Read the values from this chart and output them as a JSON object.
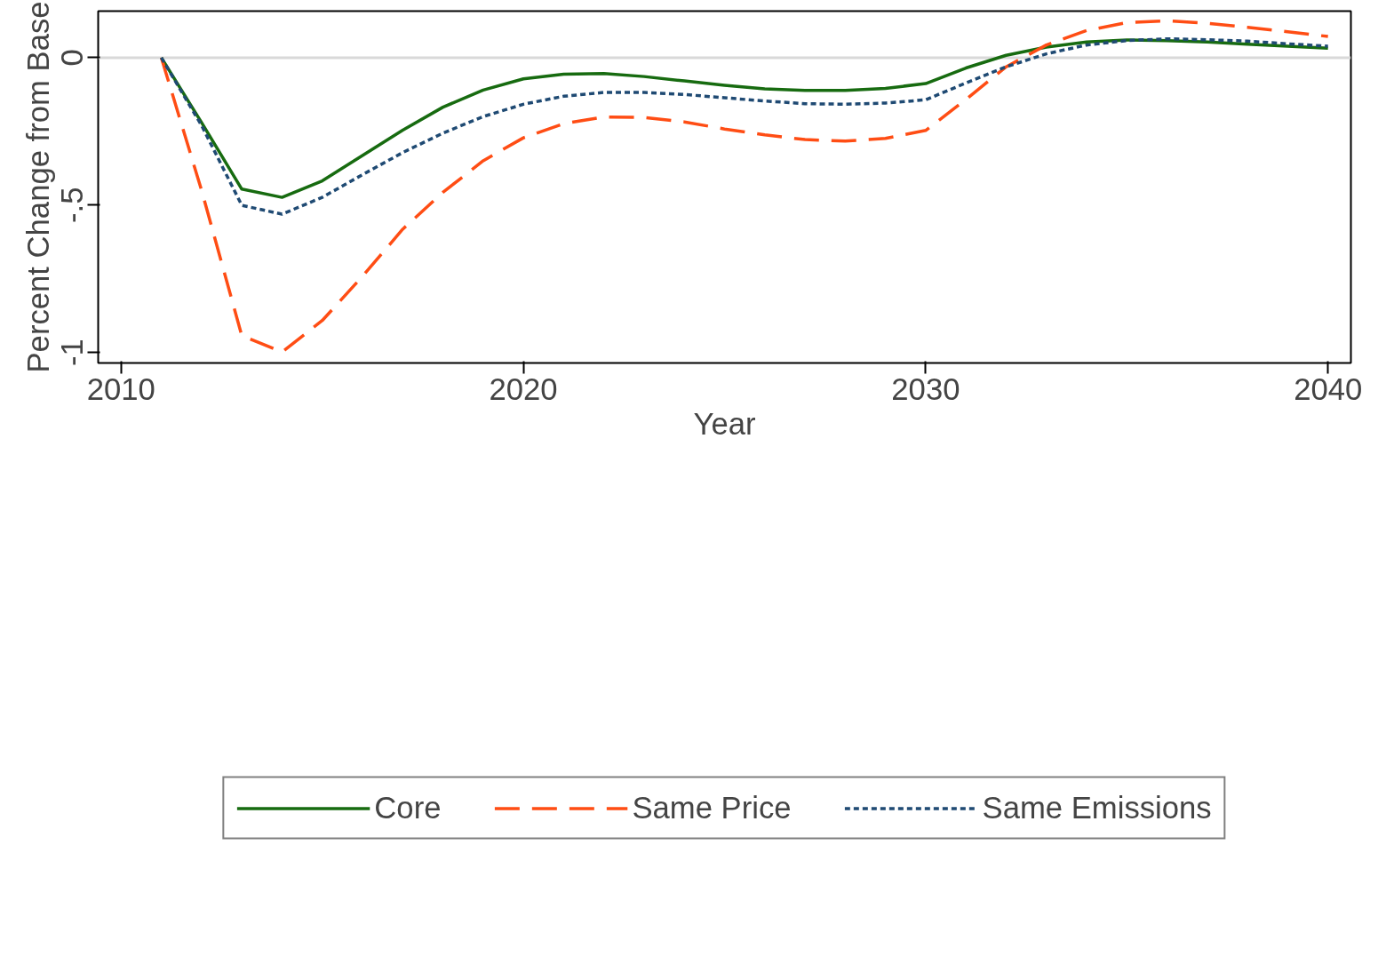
{
  "chart_data": {
    "type": "line",
    "xlabel": "Year",
    "ylabel": "Percent Change from Base",
    "x": [
      2011,
      2012,
      2013,
      2014,
      2015,
      2016,
      2017,
      2018,
      2019,
      2020,
      2021,
      2022,
      2023,
      2024,
      2025,
      2026,
      2027,
      2028,
      2029,
      2030,
      2031,
      2032,
      2033,
      2034,
      2035,
      2036,
      2037,
      2038,
      2039,
      2040
    ],
    "series": [
      {
        "name": "Core",
        "color": "#176b10",
        "line_style": "solid",
        "values": [
          0,
          -0.22,
          -0.446,
          -0.474,
          -0.418,
          -0.332,
          -0.246,
          -0.168,
          -0.11,
          -0.072,
          -0.056,
          -0.054,
          -0.064,
          -0.079,
          -0.094,
          -0.106,
          -0.111,
          -0.111,
          -0.104,
          -0.088,
          -0.035,
          0.008,
          0.036,
          0.053,
          0.06,
          0.058,
          0.053,
          0.046,
          0.039,
          0.032
        ]
      },
      {
        "name": "Same Price",
        "color": "#ff4d14",
        "line_style": "dashed",
        "values": [
          0,
          -0.45,
          -0.943,
          -0.999,
          -0.892,
          -0.742,
          -0.582,
          -0.457,
          -0.35,
          -0.272,
          -0.224,
          -0.201,
          -0.203,
          -0.218,
          -0.242,
          -0.262,
          -0.278,
          -0.283,
          -0.274,
          -0.247,
          -0.142,
          -0.031,
          0.043,
          0.092,
          0.119,
          0.125,
          0.117,
          0.103,
          0.088,
          0.072
        ]
      },
      {
        "name": "Same Emissions",
        "color": "#1f4a73",
        "line_style": "dotted",
        "values": [
          0,
          -0.23,
          -0.501,
          -0.531,
          -0.474,
          -0.397,
          -0.322,
          -0.256,
          -0.2,
          -0.158,
          -0.131,
          -0.118,
          -0.118,
          -0.125,
          -0.136,
          -0.147,
          -0.156,
          -0.158,
          -0.154,
          -0.143,
          -0.086,
          -0.031,
          0.013,
          0.043,
          0.058,
          0.064,
          0.061,
          0.056,
          0.047,
          0.039
        ]
      }
    ],
    "xlim": [
      2009.43,
      2040.57
    ],
    "ylim": [
      -1.036,
      0.158
    ],
    "xticks": [
      2010,
      2020,
      2030,
      2040
    ],
    "yticks": [
      {
        "value": -1,
        "label": "-1"
      },
      {
        "value": -0.5,
        "label": "-.5"
      },
      {
        "value": 0,
        "label": "0"
      }
    ],
    "ref_lines": [
      {
        "axis": "y",
        "value": 0,
        "color": "#d9d9d9"
      }
    ],
    "grid": false,
    "legend": "bottom"
  }
}
